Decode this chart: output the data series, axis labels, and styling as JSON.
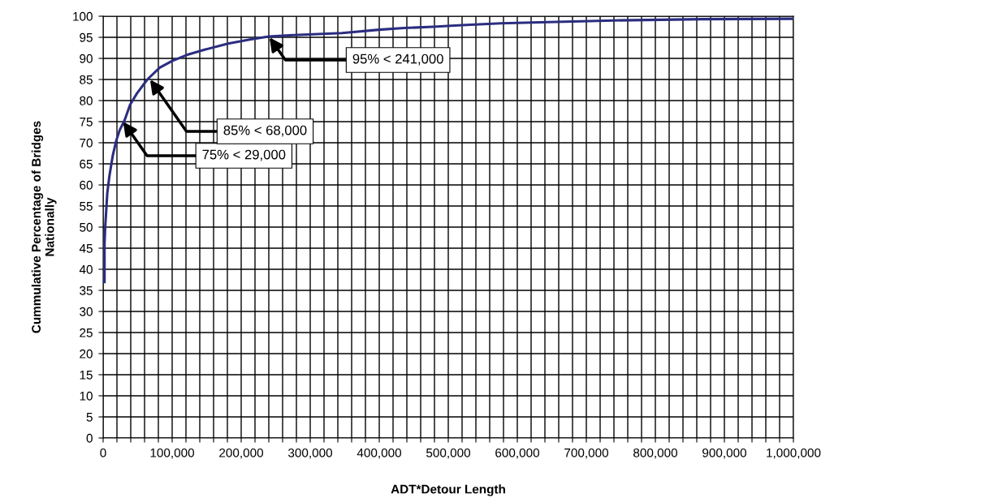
{
  "chart_data": {
    "type": "line",
    "xlabel": "ADT*Detour Length",
    "ylabel": "Cummulative Percentage of Bridges\nNationally",
    "x": [
      2000,
      2000,
      3000,
      6000,
      9000,
      14000,
      19000,
      24000,
      31000,
      39000,
      49000,
      64000,
      82000,
      100000,
      121000,
      148000,
      181000,
      214000,
      240000,
      270000,
      346000,
      400000,
      436000,
      478000,
      520000,
      576000,
      645000,
      740000,
      868000,
      1000000
    ],
    "series": [
      {
        "color": "#2b2d80",
        "values": [
          37,
          46,
          50,
          58,
          62,
          67,
          70.5,
          73,
          75.3,
          79,
          81.7,
          85,
          87.8,
          89.4,
          90.8,
          92.1,
          93.5,
          94.5,
          95.2,
          95.5,
          96,
          96.8,
          97.2,
          97.5,
          97.9,
          98.3,
          98.6,
          99,
          99.3,
          99.4
        ]
      }
    ],
    "xlim": [
      0,
      1000000
    ],
    "xticks": [
      0,
      {
        "value": 20000,
        "label": null
      },
      {
        "value": 40000,
        "label": null
      },
      {
        "value": 60000,
        "label": null
      },
      {
        "value": 80000,
        "label": null
      },
      {
        "value": 100000,
        "label": "100,000"
      },
      {
        "value": 120000,
        "label": null
      },
      {
        "value": 140000,
        "label": null
      },
      {
        "value": 160000,
        "label": null
      },
      {
        "value": 180000,
        "label": null
      },
      {
        "value": 200000,
        "label": "200,000"
      },
      {
        "value": 220000,
        "label": null
      },
      {
        "value": 240000,
        "label": null
      },
      {
        "value": 260000,
        "label": null
      },
      {
        "value": 280000,
        "label": null
      },
      {
        "value": 300000,
        "label": "300,000"
      },
      {
        "value": 320000,
        "label": null
      },
      {
        "value": 340000,
        "label": null
      },
      {
        "value": 360000,
        "label": null
      },
      {
        "value": 380000,
        "label": null
      },
      {
        "value": 400000,
        "label": "400,000"
      },
      {
        "value": 420000,
        "label": null
      },
      {
        "value": 440000,
        "label": null
      },
      {
        "value": 460000,
        "label": null
      },
      {
        "value": 480000,
        "label": null
      },
      {
        "value": 500000,
        "label": "500,000"
      },
      {
        "value": 520000,
        "label": null
      },
      {
        "value": 540000,
        "label": null
      },
      {
        "value": 560000,
        "label": null
      },
      {
        "value": 580000,
        "label": null
      },
      {
        "value": 600000,
        "label": "600,000"
      },
      {
        "value": 620000,
        "label": null
      },
      {
        "value": 640000,
        "label": null
      },
      {
        "value": 660000,
        "label": null
      },
      {
        "value": 680000,
        "label": null
      },
      {
        "value": 700000,
        "label": "700,000"
      },
      {
        "value": 720000,
        "label": null
      },
      {
        "value": 740000,
        "label": null
      },
      {
        "value": 760000,
        "label": null
      },
      {
        "value": 780000,
        "label": null
      },
      {
        "value": 800000,
        "label": "800,000"
      },
      {
        "value": 820000,
        "label": null
      },
      {
        "value": 840000,
        "label": null
      },
      {
        "value": 860000,
        "label": null
      },
      {
        "value": 880000,
        "label": null
      },
      {
        "value": 900000,
        "label": "900,000"
      },
      {
        "value": 920000,
        "label": null
      },
      {
        "value": 940000,
        "label": null
      },
      {
        "value": 960000,
        "label": null
      },
      {
        "value": 980000,
        "label": null
      },
      {
        "value": 1000000,
        "label": "1,000,000"
      }
    ],
    "ylim": [
      0,
      100
    ],
    "yticks": [
      0,
      5,
      10,
      15,
      20,
      25,
      30,
      35,
      40,
      45,
      50,
      55,
      60,
      65,
      70,
      75,
      80,
      85,
      90,
      95,
      100
    ],
    "grid": true,
    "marker": "none",
    "line_style": "solid",
    "annotations": [
      {
        "text": "75% < 29,000",
        "x": 29000,
        "y": 75
      },
      {
        "text": "85% < 68,000",
        "x": 68000,
        "y": 85
      },
      {
        "text": "95% < 241,000",
        "x": 241000,
        "y": 95
      }
    ]
  }
}
